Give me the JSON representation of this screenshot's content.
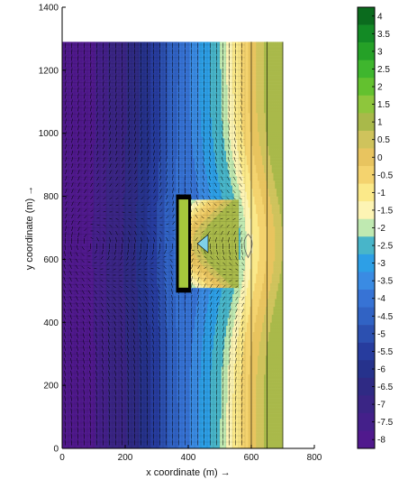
{
  "chart_data": {
    "type": "heatmap",
    "title": "",
    "xlabel": "x coordinate (m) →",
    "ylabel": "y coordinate (m) →",
    "xlim": [
      0,
      800
    ],
    "ylim": [
      0,
      1400
    ],
    "x_ticks": [
      "0",
      "200",
      "400",
      "600",
      "800"
    ],
    "y_ticks": [
      "0",
      "200",
      "400",
      "600",
      "800",
      "1000",
      "1200",
      "1400"
    ],
    "colorbar": {
      "labels": [
        "4",
        "3.5",
        "3",
        "2.5",
        "2",
        "1.5",
        "1",
        "0.5",
        "0",
        "-0.5",
        "-1",
        "-1.5",
        "-2",
        "-2.5",
        "-3",
        "-3.5",
        "-4",
        "-4.5",
        "-5",
        "-5.5",
        "-6",
        "-6.5",
        "-7",
        "-7.5",
        "-8"
      ],
      "colors": [
        "#0b6b1e",
        "#138a25",
        "#25a127",
        "#3fb62e",
        "#63c12f",
        "#8ec63c",
        "#a9b94a",
        "#cfc35c",
        "#e8c45f",
        "#f4d36e",
        "#fbe989",
        "#fdf4b4",
        "#bfe9b1",
        "#48b5c9",
        "#2d9fe6",
        "#3a8be3",
        "#3773d5",
        "#3163c4",
        "#2c50b0",
        "#273c9e",
        "#26328c",
        "#2f2a84",
        "#3a2585",
        "#44208a",
        "#50198d"
      ]
    },
    "series": [
      {
        "type": "filled-contour",
        "x_columns": [
          0,
          20,
          50,
          100,
          150,
          200,
          250,
          300,
          350,
          400,
          450,
          500,
          550,
          600,
          650,
          700
        ],
        "values_far_field": [
          -8.0,
          -8.0,
          -8.0,
          -7.8,
          -7.2,
          -6.8,
          -6.2,
          -5.5,
          -4.5,
          -3.8,
          -3.0,
          -2.3,
          -1.0,
          0.0,
          1.0,
          1.2
        ],
        "extent_y": [
          0,
          1290
        ]
      }
    ],
    "annotations": [
      {
        "type": "structure",
        "label": "",
        "x_range": [
          370,
          400
        ],
        "y_range": [
          500,
          800
        ]
      }
    ],
    "grid": false,
    "quiver": true
  }
}
